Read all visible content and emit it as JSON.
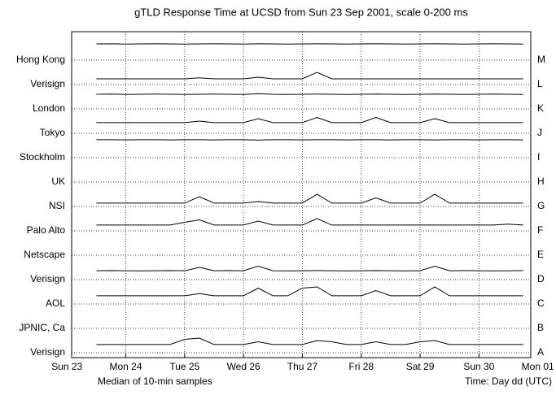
{
  "chart_data": {
    "type": "line",
    "title": "gTLD Response Time at UCSD from Sun 23 Sep 2001, scale 0-200 ms",
    "xlabel_left": "Median of 10-min samples",
    "xlabel_right": "Time: Day dd (UTC)",
    "color": "#000000",
    "grid": true,
    "ylim": [
      0,
      200
    ],
    "xlim": [
      0.08,
      7.88
    ],
    "xticks": [
      {
        "value": 0,
        "label": "Sun 23"
      },
      {
        "value": 1,
        "label": "Mon 24"
      },
      {
        "value": 2,
        "label": "Tue 25"
      },
      {
        "value": 3,
        "label": "Wed 26"
      },
      {
        "value": 4,
        "label": "Thu 27"
      },
      {
        "value": 5,
        "label": "Fri 28"
      },
      {
        "value": 6,
        "label": "Sat 29"
      },
      {
        "value": 7,
        "label": "Sun 30"
      },
      {
        "value": 8,
        "label": "Mon 01"
      }
    ],
    "x": [
      0.5,
      0.75,
      1.0,
      1.25,
      1.5,
      1.75,
      2.0,
      2.25,
      2.5,
      2.75,
      3.0,
      3.25,
      3.5,
      3.75,
      4.0,
      4.25,
      4.5,
      4.75,
      5.0,
      5.25,
      5.5,
      5.75,
      6.0,
      6.25,
      6.5,
      6.75,
      7.0,
      7.25,
      7.5,
      7.75
    ],
    "series": [
      {
        "name": "Hong Kong",
        "code": "M",
        "values": [
          133,
          134,
          132,
          133,
          134,
          133,
          132,
          133,
          134,
          133,
          132,
          134,
          133,
          132,
          133,
          134,
          133,
          132,
          133,
          134,
          133,
          132,
          133,
          134,
          133,
          132,
          133,
          134,
          133,
          132
        ]
      },
      {
        "name": "Verisign",
        "code": "L",
        "values": [
          47,
          47,
          47,
          47,
          47,
          47,
          47,
          55,
          47,
          47,
          47,
          60,
          47,
          47,
          47,
          100,
          47,
          47,
          47,
          47,
          47,
          47,
          47,
          47,
          47,
          47,
          47,
          47,
          47,
          47
        ]
      },
      {
        "name": "London",
        "code": "K",
        "values": [
          120,
          121,
          119,
          120,
          121,
          120,
          119,
          120,
          121,
          120,
          119,
          125,
          120,
          119,
          120,
          121,
          120,
          119,
          120,
          121,
          120,
          119,
          120,
          121,
          120,
          119,
          120,
          121,
          120,
          119
        ]
      },
      {
        "name": "Tokyo",
        "code": "J",
        "values": [
          87,
          87,
          87,
          87,
          87,
          87,
          87,
          100,
          87,
          87,
          87,
          120,
          87,
          87,
          87,
          130,
          87,
          87,
          87,
          130,
          87,
          87,
          87,
          120,
          87,
          87,
          87,
          87,
          87,
          87
        ]
      },
      {
        "name": "Stockholm",
        "code": "I",
        "values": [
          147,
          147,
          146,
          147,
          147,
          146,
          147,
          147,
          146,
          147,
          147,
          144,
          147,
          147,
          146,
          147,
          147,
          146,
          147,
          147,
          146,
          147,
          147,
          146,
          147,
          147,
          146,
          147,
          147,
          146
        ]
      },
      {
        "name": "UK",
        "code": "H",
        "values": [
          null,
          null,
          null,
          null,
          null,
          null,
          null,
          null,
          null,
          null,
          null,
          null,
          null,
          null,
          null,
          null,
          null,
          null,
          null,
          null,
          null,
          null,
          null,
          null,
          null,
          null,
          null,
          null,
          null,
          null
        ]
      },
      {
        "name": "NSI",
        "code": "G",
        "values": [
          27,
          27,
          27,
          27,
          27,
          27,
          27,
          80,
          27,
          27,
          27,
          40,
          27,
          27,
          27,
          100,
          27,
          27,
          27,
          70,
          27,
          27,
          27,
          100,
          27,
          27,
          27,
          27,
          27,
          27
        ]
      },
      {
        "name": "Palo Alto",
        "code": "F",
        "values": [
          47,
          47,
          47,
          47,
          47,
          47,
          70,
          90,
          47,
          47,
          47,
          80,
          47,
          47,
          47,
          100,
          47,
          47,
          47,
          47,
          47,
          47,
          47,
          47,
          47,
          47,
          47,
          47,
          55,
          47
        ]
      },
      {
        "name": "Netscape",
        "code": "E",
        "values": [
          null,
          null,
          null,
          null,
          null,
          null,
          null,
          null,
          null,
          null,
          null,
          null,
          null,
          null,
          null,
          null,
          null,
          null,
          null,
          null,
          null,
          null,
          null,
          null,
          null,
          null,
          null,
          null,
          null,
          null
        ]
      },
      {
        "name": "Verisign",
        "code": "D",
        "values": [
          73,
          74,
          73,
          72,
          73,
          74,
          73,
          100,
          73,
          74,
          73,
          110,
          73,
          72,
          73,
          74,
          73,
          72,
          73,
          74,
          73,
          72,
          73,
          110,
          73,
          74,
          73,
          72,
          73,
          74
        ]
      },
      {
        "name": "AOL",
        "code": "C",
        "values": [
          67,
          67,
          67,
          67,
          67,
          67,
          67,
          85,
          67,
          67,
          67,
          130,
          67,
          67,
          130,
          140,
          67,
          67,
          67,
          110,
          67,
          67,
          67,
          140,
          67,
          67,
          67,
          67,
          67,
          67
        ]
      },
      {
        "name": "JPNIC, Ca",
        "code": "B",
        "values": [
          null,
          null,
          null,
          null,
          null,
          null,
          null,
          null,
          null,
          null,
          null,
          null,
          null,
          null,
          null,
          null,
          null,
          null,
          null,
          null,
          null,
          null,
          null,
          null,
          null,
          null,
          null,
          null,
          null,
          null
        ]
      },
      {
        "name": "Verisign",
        "code": "A",
        "values": [
          67,
          67,
          67,
          67,
          67,
          67,
          110,
          120,
          67,
          67,
          67,
          90,
          67,
          67,
          67,
          100,
          90,
          67,
          67,
          90,
          67,
          67,
          90,
          100,
          67,
          67,
          67,
          67,
          67,
          67
        ]
      }
    ]
  }
}
